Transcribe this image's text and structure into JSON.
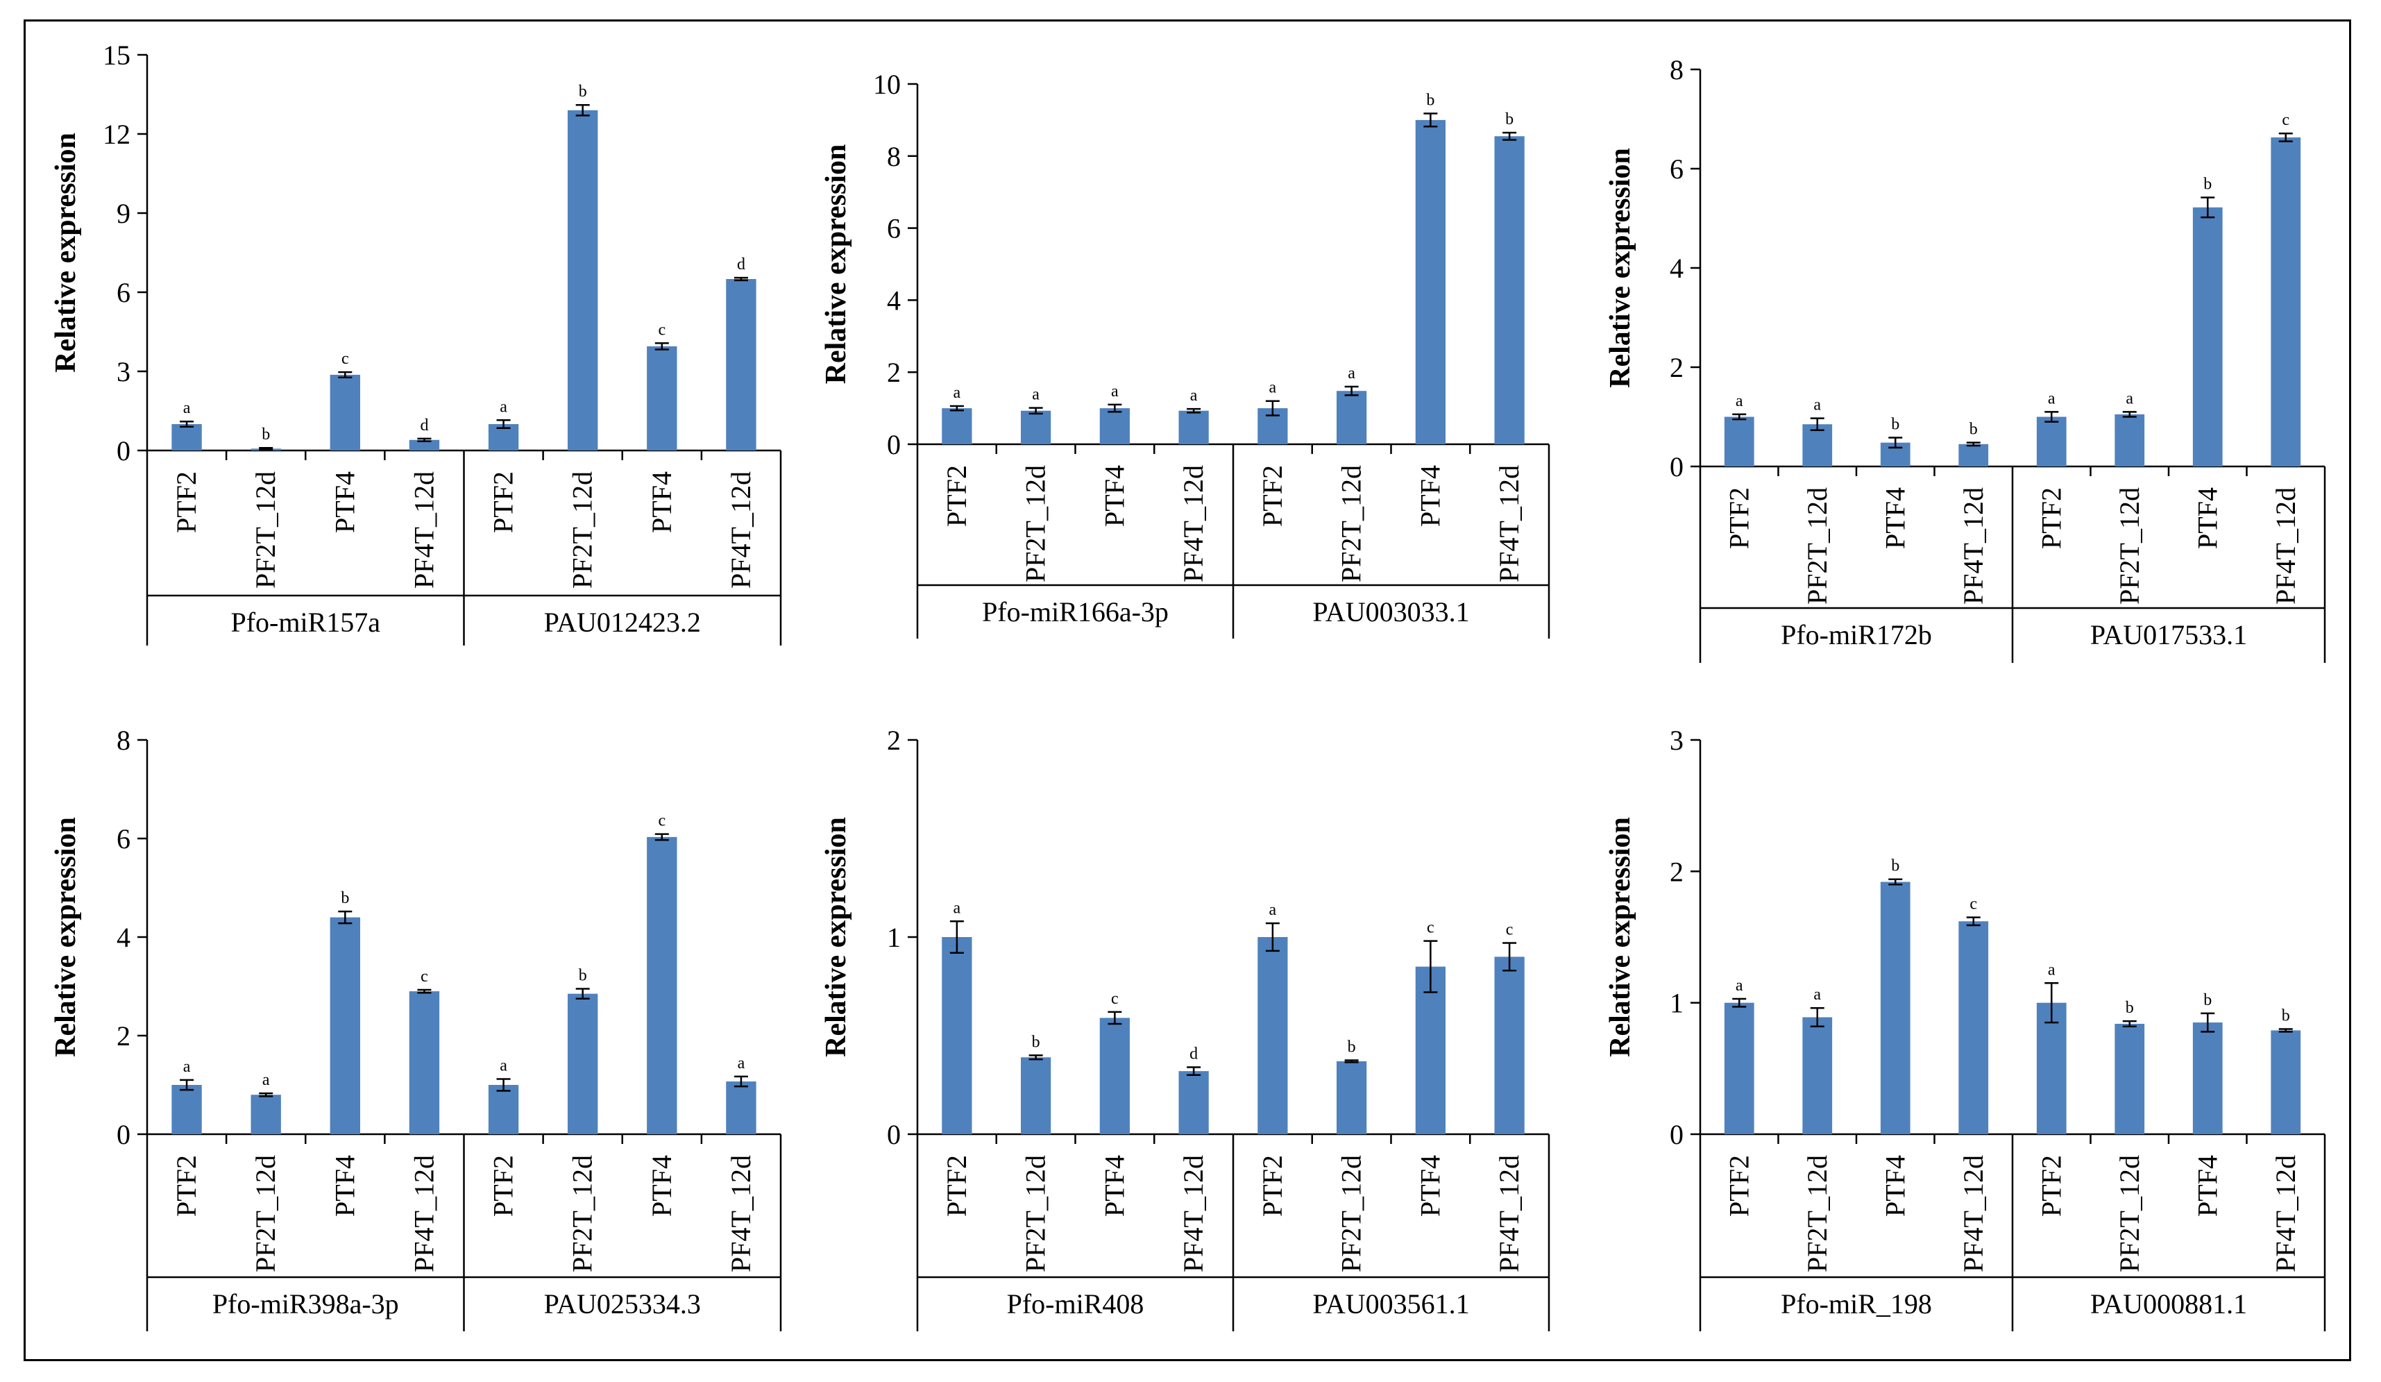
{
  "bar_color": "#4f81bd",
  "chart_data": [
    {
      "type": "bar",
      "ylabel": "Relative expression",
      "ylim": [
        0,
        15
      ],
      "yticks": [
        0,
        3,
        6,
        9,
        12,
        15
      ],
      "groups": [
        "Pfo-miR157a",
        "PAU012423.2"
      ],
      "categories": [
        "PTF2",
        "PF2T_12d",
        "PTF4",
        "PF4T_12d",
        "PTF2",
        "PF2T_12d",
        "PTF4",
        "PF4T_12d"
      ],
      "values": [
        1.0,
        0.07,
        2.87,
        0.4,
        1.0,
        12.9,
        3.95,
        6.5
      ],
      "errors": [
        0.1,
        0.03,
        0.1,
        0.05,
        0.15,
        0.2,
        0.12,
        0.05
      ],
      "letters": [
        "a",
        "b",
        "c",
        "d",
        "a",
        "b",
        "c",
        "d"
      ]
    },
    {
      "type": "bar",
      "ylabel": "Relative expression",
      "ylim": [
        0,
        10
      ],
      "yticks": [
        0,
        2,
        4,
        6,
        8,
        10
      ],
      "groups": [
        "Pfo-miR166a-3p",
        "PAU003033.1"
      ],
      "categories": [
        "PTF2",
        "PF2T_12d",
        "PTF4",
        "PF4T_12d",
        "PTF2",
        "PF2T_12d",
        "PTF4",
        "PF4T_12d"
      ],
      "values": [
        1.0,
        0.93,
        1.0,
        0.93,
        1.0,
        1.48,
        9.0,
        8.55
      ],
      "errors": [
        0.06,
        0.08,
        0.1,
        0.05,
        0.2,
        0.12,
        0.18,
        0.1
      ],
      "letters": [
        "a",
        "a",
        "a",
        "a",
        "a",
        "a",
        "b",
        "b"
      ]
    },
    {
      "type": "bar",
      "ylabel": "Relative expression",
      "ylim": [
        0,
        8
      ],
      "yticks": [
        0,
        2,
        4,
        6,
        8
      ],
      "groups": [
        "Pfo-miR172b",
        "PAU017533.1"
      ],
      "categories": [
        "PTF2",
        "PF2T_12d",
        "PTF4",
        "PF4T_12d",
        "PTF2",
        "PF2T_12d",
        "PTF4",
        "PF4T_12d"
      ],
      "values": [
        1.0,
        0.85,
        0.48,
        0.45,
        1.0,
        1.05,
        5.22,
        6.63
      ],
      "errors": [
        0.05,
        0.12,
        0.1,
        0.03,
        0.1,
        0.05,
        0.2,
        0.08
      ],
      "letters": [
        "a",
        "a",
        "b",
        "b",
        "a",
        "a",
        "b",
        "c"
      ]
    },
    {
      "type": "bar",
      "ylabel": "Relative expression",
      "ylim": [
        0,
        8
      ],
      "yticks": [
        0,
        2,
        4,
        6,
        8
      ],
      "groups": [
        "Pfo-miR398a-3p",
        "PAU025334.3"
      ],
      "categories": [
        "PTF2",
        "PF2T_12d",
        "PTF4",
        "PF4T_12d",
        "PTF2",
        "PF2T_12d",
        "PTF4",
        "PF4T_12d"
      ],
      "values": [
        1.0,
        0.8,
        4.4,
        2.9,
        1.0,
        2.85,
        6.03,
        1.07
      ],
      "errors": [
        0.1,
        0.03,
        0.12,
        0.03,
        0.12,
        0.1,
        0.06,
        0.1
      ],
      "letters": [
        "a",
        "a",
        "b",
        "c",
        "a",
        "b",
        "c",
        "a"
      ]
    },
    {
      "type": "bar",
      "ylabel": "Relative expression",
      "ylim": [
        0,
        2
      ],
      "yticks": [
        0,
        1,
        2
      ],
      "groups": [
        "Pfo-miR408",
        "PAU003561.1"
      ],
      "categories": [
        "PTF2",
        "PF2T_12d",
        "PTF4",
        "PF4T_12d",
        "PTF2",
        "PF2T_12d",
        "PTF4",
        "PF4T_12d"
      ],
      "values": [
        1.0,
        0.39,
        0.59,
        0.32,
        1.0,
        0.37,
        0.85,
        0.9
      ],
      "errors": [
        0.08,
        0.01,
        0.03,
        0.02,
        0.07,
        0.005,
        0.13,
        0.07
      ],
      "letters": [
        "a",
        "b",
        "c",
        "d",
        "a",
        "b",
        "c",
        "c"
      ]
    },
    {
      "type": "bar",
      "ylabel": "Relative expression",
      "ylim": [
        0,
        3
      ],
      "yticks": [
        0,
        1,
        2,
        3
      ],
      "groups": [
        "Pfo-miR_198",
        "PAU000881.1"
      ],
      "categories": [
        "PTF2",
        "PF2T_12d",
        "PTF4",
        "PF4T_12d",
        "PTF2",
        "PF2T_12d",
        "PTF4",
        "PF4T_12d"
      ],
      "values": [
        1.0,
        0.89,
        1.92,
        1.62,
        1.0,
        0.84,
        0.85,
        0.79
      ],
      "errors": [
        0.03,
        0.07,
        0.02,
        0.03,
        0.15,
        0.02,
        0.07,
        0.01
      ],
      "letters": [
        "a",
        "a",
        "b",
        "c",
        "a",
        "b",
        "b",
        "b"
      ]
    }
  ]
}
